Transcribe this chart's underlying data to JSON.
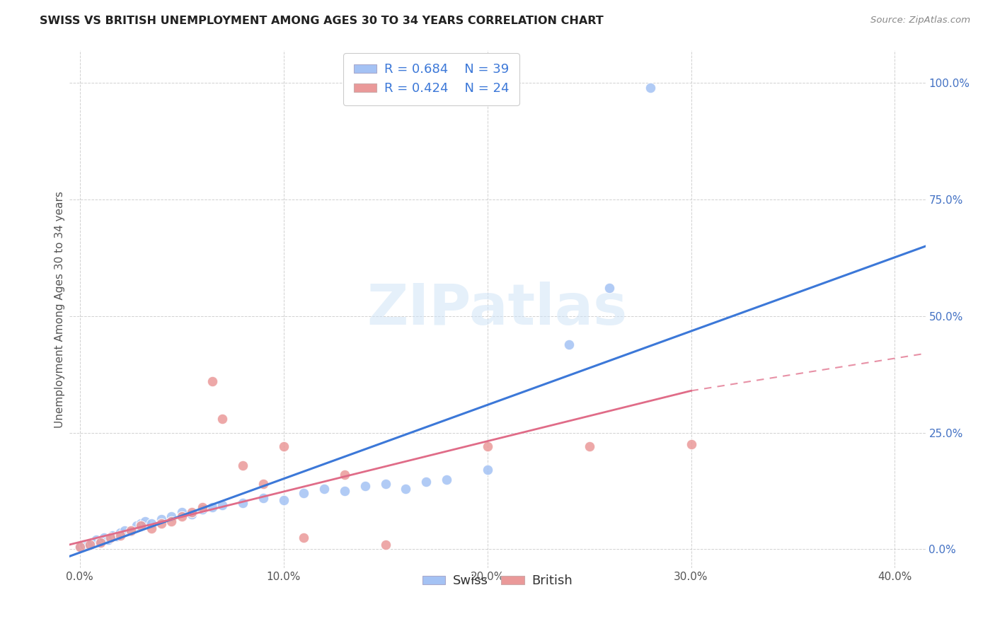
{
  "title": "SWISS VS BRITISH UNEMPLOYMENT AMONG AGES 30 TO 34 YEARS CORRELATION CHART",
  "source": "Source: ZipAtlas.com",
  "xlabel_tick_vals": [
    0.0,
    10.0,
    20.0,
    30.0,
    40.0
  ],
  "ylabel_tick_vals": [
    0.0,
    25.0,
    50.0,
    75.0,
    100.0
  ],
  "xlim": [
    -0.5,
    41.5
  ],
  "ylim": [
    -4.0,
    107.0
  ],
  "ylabel": "Unemployment Among Ages 30 to 34 years",
  "swiss_R": 0.684,
  "swiss_N": 39,
  "british_R": 0.424,
  "british_N": 24,
  "swiss_color": "#a4c2f4",
  "british_color": "#ea9999",
  "swiss_line_color": "#3c78d8",
  "british_line_color": "#e06c88",
  "watermark_color": "#d0e4f7",
  "swiss_points": [
    [
      0.0,
      0.5
    ],
    [
      0.2,
      1.0
    ],
    [
      0.4,
      0.8
    ],
    [
      0.6,
      1.5
    ],
    [
      0.8,
      2.0
    ],
    [
      1.0,
      1.8
    ],
    [
      1.2,
      2.5
    ],
    [
      1.4,
      2.0
    ],
    [
      1.6,
      3.0
    ],
    [
      1.8,
      2.8
    ],
    [
      2.0,
      3.5
    ],
    [
      2.2,
      4.0
    ],
    [
      2.5,
      3.8
    ],
    [
      2.8,
      5.0
    ],
    [
      3.0,
      5.5
    ],
    [
      3.2,
      6.0
    ],
    [
      3.5,
      5.5
    ],
    [
      4.0,
      6.5
    ],
    [
      4.5,
      7.0
    ],
    [
      5.0,
      8.0
    ],
    [
      5.5,
      7.5
    ],
    [
      6.0,
      8.5
    ],
    [
      6.5,
      9.0
    ],
    [
      7.0,
      9.5
    ],
    [
      8.0,
      10.0
    ],
    [
      9.0,
      11.0
    ],
    [
      10.0,
      10.5
    ],
    [
      11.0,
      12.0
    ],
    [
      12.0,
      13.0
    ],
    [
      13.0,
      12.5
    ],
    [
      14.0,
      13.5
    ],
    [
      15.0,
      14.0
    ],
    [
      16.0,
      13.0
    ],
    [
      17.0,
      14.5
    ],
    [
      18.0,
      15.0
    ],
    [
      20.0,
      17.0
    ],
    [
      24.0,
      44.0
    ],
    [
      26.0,
      56.0
    ],
    [
      28.0,
      99.0
    ]
  ],
  "british_points": [
    [
      0.0,
      0.5
    ],
    [
      0.5,
      1.0
    ],
    [
      1.0,
      1.5
    ],
    [
      1.5,
      2.5
    ],
    [
      2.0,
      3.0
    ],
    [
      2.5,
      4.0
    ],
    [
      3.0,
      5.0
    ],
    [
      3.5,
      4.5
    ],
    [
      4.0,
      5.5
    ],
    [
      4.5,
      6.0
    ],
    [
      5.0,
      7.0
    ],
    [
      5.5,
      8.0
    ],
    [
      6.0,
      9.0
    ],
    [
      6.5,
      36.0
    ],
    [
      7.0,
      28.0
    ],
    [
      8.0,
      18.0
    ],
    [
      9.0,
      14.0
    ],
    [
      10.0,
      22.0
    ],
    [
      11.0,
      2.5
    ],
    [
      13.0,
      16.0
    ],
    [
      15.0,
      1.0
    ],
    [
      20.0,
      22.0
    ],
    [
      25.0,
      22.0
    ],
    [
      30.0,
      22.5
    ]
  ],
  "swiss_line": {
    "x0": -0.5,
    "y0": -1.5,
    "x1": 41.5,
    "y1": 65.0
  },
  "british_line_solid": {
    "x0": -0.5,
    "y0": 1.0,
    "x1": 30.0,
    "y1": 34.0
  },
  "british_line_dash": {
    "x0": 30.0,
    "y0": 34.0,
    "x1": 41.5,
    "y1": 42.0
  }
}
